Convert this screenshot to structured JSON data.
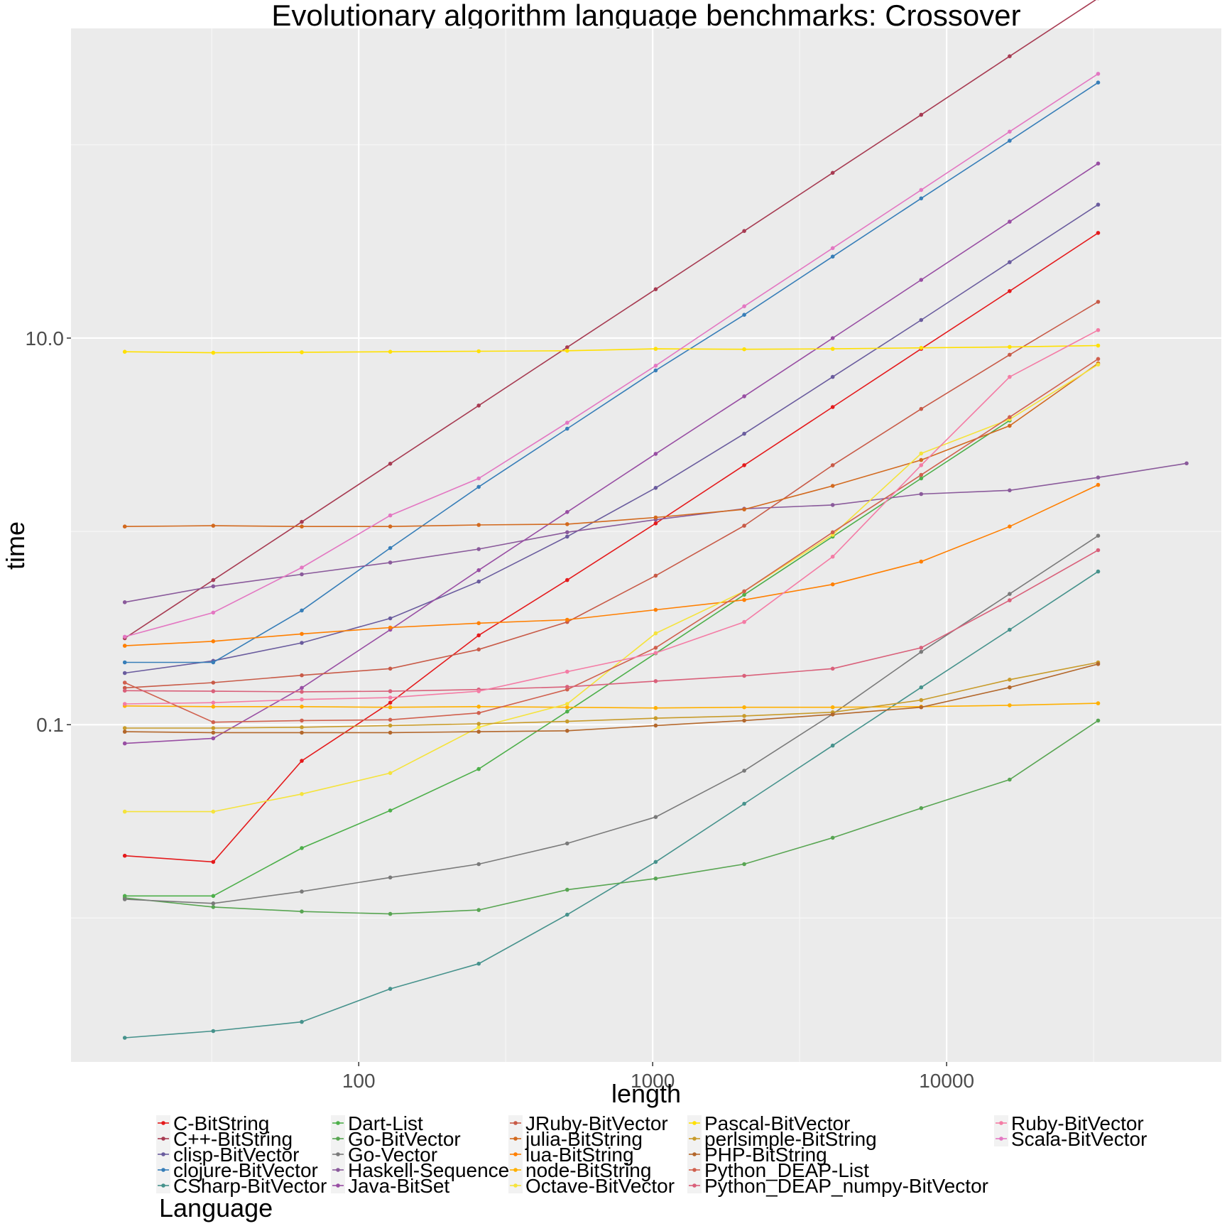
{
  "chart_data": {
    "type": "line",
    "title": "Evolutionary algorithm language benchmarks: Crossover",
    "xlabel": "length",
    "ylabel": "time",
    "x_scale": "log10",
    "y_scale": "log10",
    "xlim": [
      10.5,
      86000
    ],
    "ylim": [
      0.0018,
      400
    ],
    "grid": true,
    "x_ticks": [
      100,
      1000,
      10000
    ],
    "x_tick_labels": [
      "100",
      "1000",
      "10000"
    ],
    "y_ticks": [
      0.1,
      10
    ],
    "y_tick_labels": [
      "0.1",
      "10.0"
    ],
    "legend_title": "Language",
    "legend_position": "bottom",
    "x": [
      16,
      32,
      64,
      128,
      256,
      512,
      1024,
      2048,
      4096,
      8192,
      16384,
      32768
    ],
    "series": [
      {
        "name": "C-BitString",
        "color": "#e41a1c",
        "values": [
          0.021,
          0.0195,
          0.065,
          0.13,
          0.29,
          0.56,
          1.1,
          2.2,
          4.4,
          8.8,
          17.5,
          35
        ]
      },
      {
        "name": "C++-BitString",
        "color": "#a73b52",
        "values": [
          0.28,
          0.56,
          1.12,
          2.24,
          4.48,
          8.96,
          17.9,
          35.8,
          71.6,
          143,
          287,
          573
        ]
      },
      {
        "name": "clisp-BitVector",
        "color": "#6a5c9e",
        "values": [
          0.185,
          0.214,
          0.265,
          0.355,
          0.55,
          0.94,
          1.68,
          3.2,
          6.3,
          12.4,
          24.7,
          49
        ]
      },
      {
        "name": "clojure-BitVector",
        "color": "#377eb8",
        "values": [
          0.21,
          0.21,
          0.39,
          0.82,
          1.7,
          3.4,
          6.8,
          13.2,
          26.4,
          52.8,
          105,
          210
        ]
      },
      {
        "name": "CSharp-BitVector",
        "color": "#46928c",
        "values": [
          0.0024,
          0.0026,
          0.0029,
          0.0043,
          0.0058,
          0.0104,
          0.0195,
          0.039,
          0.078,
          0.156,
          0.31,
          0.62
        ]
      },
      {
        "name": "Dart-List",
        "color": "#4daf4a",
        "values": [
          0.013,
          0.013,
          0.023,
          0.036,
          0.059,
          0.117,
          0.234,
          0.47,
          0.94,
          1.88,
          3.75,
          null
        ]
      },
      {
        "name": "Go-BitVector",
        "color": "#58a552",
        "values": [
          0.0127,
          0.0114,
          0.0108,
          0.0105,
          0.011,
          0.014,
          0.016,
          0.019,
          0.026,
          0.037,
          0.052,
          0.105
        ]
      },
      {
        "name": "Go-Vector",
        "color": "#7a7a7a",
        "values": [
          0.0125,
          0.0119,
          0.0137,
          0.0162,
          0.019,
          0.0243,
          0.0333,
          0.0578,
          0.1135,
          0.238,
          0.475,
          0.95
        ]
      },
      {
        "name": "Haskell-Sequence",
        "color": "#8a5a9b",
        "values": [
          0.43,
          0.52,
          0.6,
          0.69,
          0.81,
          0.99,
          1.15,
          1.31,
          1.37,
          1.56,
          1.63,
          1.9
        ]
      },
      {
        "name": "Java-BitSet",
        "color": "#984ea3",
        "values": [
          0.08,
          0.085,
          0.155,
          0.31,
          0.63,
          1.26,
          2.52,
          5.0,
          10.0,
          20.0,
          40.0,
          80.0
        ]
      },
      {
        "name": "JRuby-BitVector",
        "color": "#c85a47",
        "values": [
          0.155,
          0.165,
          0.18,
          0.195,
          0.245,
          0.34,
          0.59,
          1.07,
          2.2,
          4.3,
          8.2,
          15.4
        ]
      },
      {
        "name": "julia-BitString",
        "color": "#d2691e",
        "values": [
          1.06,
          1.07,
          1.06,
          1.06,
          1.08,
          1.09,
          1.18,
          1.3,
          1.72,
          2.34,
          3.52,
          7.4
        ]
      },
      {
        "name": "lua-BitString",
        "color": "#ff7f00",
        "values": [
          0.256,
          0.27,
          0.295,
          0.318,
          0.335,
          0.349,
          0.393,
          0.442,
          0.532,
          0.698,
          1.06,
          1.74
        ]
      },
      {
        "name": "node-BitString",
        "color": "#ffb000",
        "values": [
          0.125,
          0.124,
          0.124,
          0.123,
          0.124,
          0.123,
          0.122,
          0.123,
          0.123,
          0.124,
          0.126,
          0.129
        ]
      },
      {
        "name": "Octave-BitVector",
        "color": "#f5e33b",
        "values": [
          0.0355,
          0.0355,
          0.0438,
          0.0562,
          0.097,
          0.128,
          0.297,
          0.49,
          0.96,
          2.53,
          3.8,
          7.3
        ]
      },
      {
        "name": "Pascal-BitVector",
        "color": "#ffe000",
        "values": [
          8.5,
          8.4,
          8.45,
          8.5,
          8.55,
          8.6,
          8.8,
          8.75,
          8.8,
          8.9,
          9.0,
          9.15
        ]
      },
      {
        "name": "perlsimple-BitString",
        "color": "#c89b2a",
        "values": [
          0.096,
          0.096,
          0.097,
          0.099,
          0.101,
          0.104,
          0.108,
          0.111,
          0.116,
          0.134,
          0.171,
          0.21
        ]
      },
      {
        "name": "PHP-BitString",
        "color": "#b3672b",
        "values": [
          0.092,
          0.091,
          0.091,
          0.091,
          0.092,
          0.093,
          0.099,
          0.105,
          0.113,
          0.123,
          0.156,
          0.206
        ]
      },
      {
        "name": "Python_DEAP-List",
        "color": "#d0604e",
        "values": [
          0.165,
          0.103,
          0.105,
          0.106,
          0.115,
          0.152,
          0.25,
          0.49,
          0.99,
          1.96,
          3.9,
          7.8
        ]
      },
      {
        "name": "Python_DEAP_numpy-BitVector",
        "color": "#d9607a",
        "values": [
          0.15,
          0.149,
          0.148,
          0.149,
          0.152,
          0.157,
          0.168,
          0.179,
          0.195,
          0.25,
          0.44,
          0.8
        ]
      },
      {
        "name": "Ruby-BitVector",
        "color": "#f47ca5",
        "values": [
          0.128,
          0.13,
          0.135,
          0.138,
          0.149,
          0.188,
          0.235,
          0.34,
          0.74,
          2.2,
          6.3,
          11.0
        ]
      },
      {
        "name": "Scala-BitVector",
        "color": "#e377c2",
        "values": [
          0.285,
          0.38,
          0.65,
          1.21,
          1.88,
          3.65,
          7.2,
          14.6,
          29.2,
          58.4,
          117,
          233
        ]
      }
    ],
    "extra_points": [
      {
        "series": "Haskell-Sequence",
        "x": 65536,
        "y": 2.25
      }
    ]
  }
}
